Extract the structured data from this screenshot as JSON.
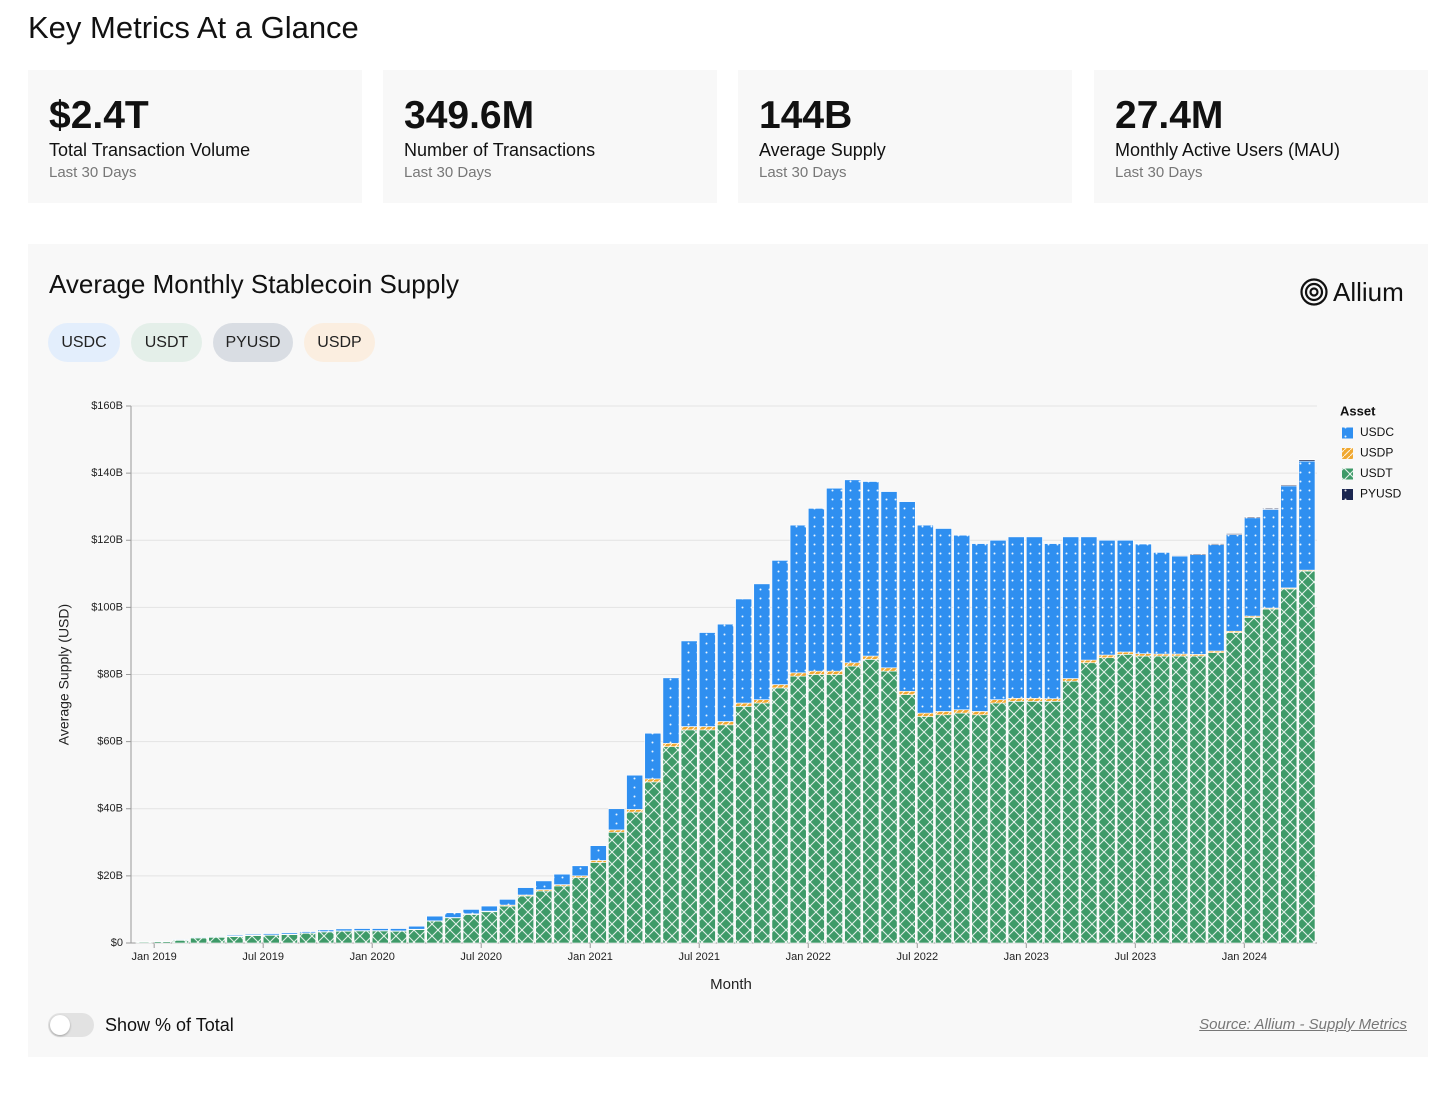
{
  "header": {
    "title": "Key Metrics At a Glance"
  },
  "metrics": [
    {
      "value": "$2.4T",
      "label": "Total Transaction Volume",
      "period": "Last 30 Days"
    },
    {
      "value": "349.6M",
      "label": "Number of Transactions",
      "period": "Last 30 Days"
    },
    {
      "value": "144B",
      "label": "Average Supply",
      "period": "Last 30 Days"
    },
    {
      "value": "27.4M",
      "label": "Monthly Active Users (MAU)",
      "period": "Last 30 Days"
    }
  ],
  "panel": {
    "title": "Average Monthly Stablecoin Supply",
    "brand": "Allium",
    "filters": [
      "USDC",
      "USDT",
      "PYUSD",
      "USDP"
    ],
    "toggle_label": "Show % of Total",
    "source": "Source: Allium - Supply Metrics"
  },
  "chart_data": {
    "type": "bar",
    "stacked": true,
    "x_label": "Month",
    "y_label": "Average Supply (USD)",
    "legend_title": "Asset",
    "legend": "right",
    "grid": true,
    "categories": [
      "Jan 2019",
      null,
      null,
      null,
      null,
      null,
      "Jul 2019",
      null,
      null,
      null,
      null,
      null,
      "Jan 2020",
      null,
      null,
      null,
      null,
      null,
      "Jul 2020",
      null,
      null,
      null,
      null,
      null,
      "Jan 2021",
      null,
      null,
      null,
      null,
      null,
      "Jul 2021",
      null,
      null,
      null,
      null,
      null,
      "Jan 2022",
      null,
      null,
      null,
      null,
      null,
      "Jul 2022",
      null,
      null,
      null,
      null,
      null,
      "Jan 2023",
      null,
      null,
      null,
      null,
      null,
      "Jul 2023",
      null,
      null,
      null,
      null,
      null,
      "Jan 2024",
      null,
      null,
      null,
      null
    ],
    "series": [
      {
        "name": "USDT",
        "color": "#3e9a68",
        "values": [
          0.3,
          0.4,
          0.8,
          1.5,
          1.7,
          1.9,
          2.2,
          2.3,
          2.5,
          2.9,
          3.3,
          3.5,
          3.6,
          3.6,
          3.5,
          4.0,
          6.5,
          7.5,
          8.5,
          9.3,
          11,
          14,
          15.5,
          17,
          19.5,
          24,
          33,
          39,
          48,
          58.5,
          63.5,
          63.5,
          65,
          70.5,
          71.5,
          76,
          79.5,
          80,
          80,
          82.5,
          84.5,
          81,
          74,
          67.5,
          68,
          68.5,
          68,
          71.5,
          72,
          72,
          72,
          78,
          83.5,
          85,
          86,
          85.5,
          85.5,
          85.5,
          85.5,
          86.5,
          92.5,
          97,
          99.5,
          105.5,
          110.8
        ]
      },
      {
        "name": "USDP",
        "color": "#f0a830",
        "values": [
          0,
          0,
          0,
          0.1,
          0.1,
          0.1,
          0.1,
          0.1,
          0.1,
          0.1,
          0.1,
          0.1,
          0.1,
          0.1,
          0.1,
          0.1,
          0.1,
          0.1,
          0.2,
          0.2,
          0.3,
          0.3,
          0.4,
          0.4,
          0.5,
          0.6,
          0.7,
          0.8,
          0.9,
          1,
          1,
          1,
          1,
          1,
          1,
          1,
          1,
          1,
          1,
          1,
          1,
          1,
          1,
          1,
          1,
          1,
          1,
          1,
          0.9,
          0.9,
          0.8,
          0.8,
          0.8,
          0.8,
          0.7,
          0.7,
          0.6,
          0.6,
          0.5,
          0.5,
          0.4,
          0.4,
          0.3,
          0.3,
          0.3
        ]
      },
      {
        "name": "USDC",
        "color": "#2f8ff0",
        "values": [
          0.1,
          0.1,
          0.2,
          0.2,
          0.2,
          0.3,
          0.3,
          0.4,
          0.4,
          0.4,
          0.5,
          0.6,
          0.6,
          0.6,
          0.7,
          0.9,
          1.4,
          1.4,
          1.3,
          1.5,
          1.7,
          2.2,
          2.6,
          3.1,
          3,
          4.4,
          6.3,
          10.2,
          13.6,
          19.5,
          25.5,
          28,
          29,
          31,
          34.5,
          37,
          44,
          48.5,
          54.5,
          54.5,
          52,
          52.5,
          56.5,
          56,
          54.5,
          52,
          50,
          47.5,
          48.1,
          48.1,
          46.2,
          42.2,
          36.7,
          34.2,
          33.3,
          32.7,
          30.3,
          29.2,
          29.7,
          31.7,
          28.8,
          29.3,
          29.4,
          30.4,
          32.5
        ]
      },
      {
        "name": "PYUSD",
        "color": "#1a2650",
        "values": [
          0,
          0,
          0,
          0,
          0,
          0,
          0,
          0,
          0,
          0,
          0,
          0,
          0,
          0,
          0,
          0,
          0,
          0,
          0,
          0,
          0,
          0,
          0,
          0,
          0,
          0,
          0,
          0,
          0,
          0,
          0,
          0,
          0,
          0,
          0,
          0,
          0,
          0,
          0,
          0,
          0,
          0,
          0,
          0,
          0,
          0,
          0,
          0,
          0,
          0,
          0,
          0,
          0,
          0,
          0,
          0.1,
          0.1,
          0.2,
          0.3,
          0.3,
          0.3,
          0.3,
          0.3,
          0.3,
          0.4
        ]
      }
    ],
    "ylim": [
      0,
      160
    ],
    "yticks": [
      {
        "value": 0,
        "label": "$0"
      },
      {
        "value": 20,
        "label": "$20B"
      },
      {
        "value": 40,
        "label": "$40B"
      },
      {
        "value": 60,
        "label": "$60B"
      },
      {
        "value": 80,
        "label": "$80B"
      },
      {
        "value": 100,
        "label": "$100B"
      },
      {
        "value": 120,
        "label": "$120B"
      },
      {
        "value": 140,
        "label": "$140B"
      },
      {
        "value": 160,
        "label": "$160B"
      }
    ]
  }
}
